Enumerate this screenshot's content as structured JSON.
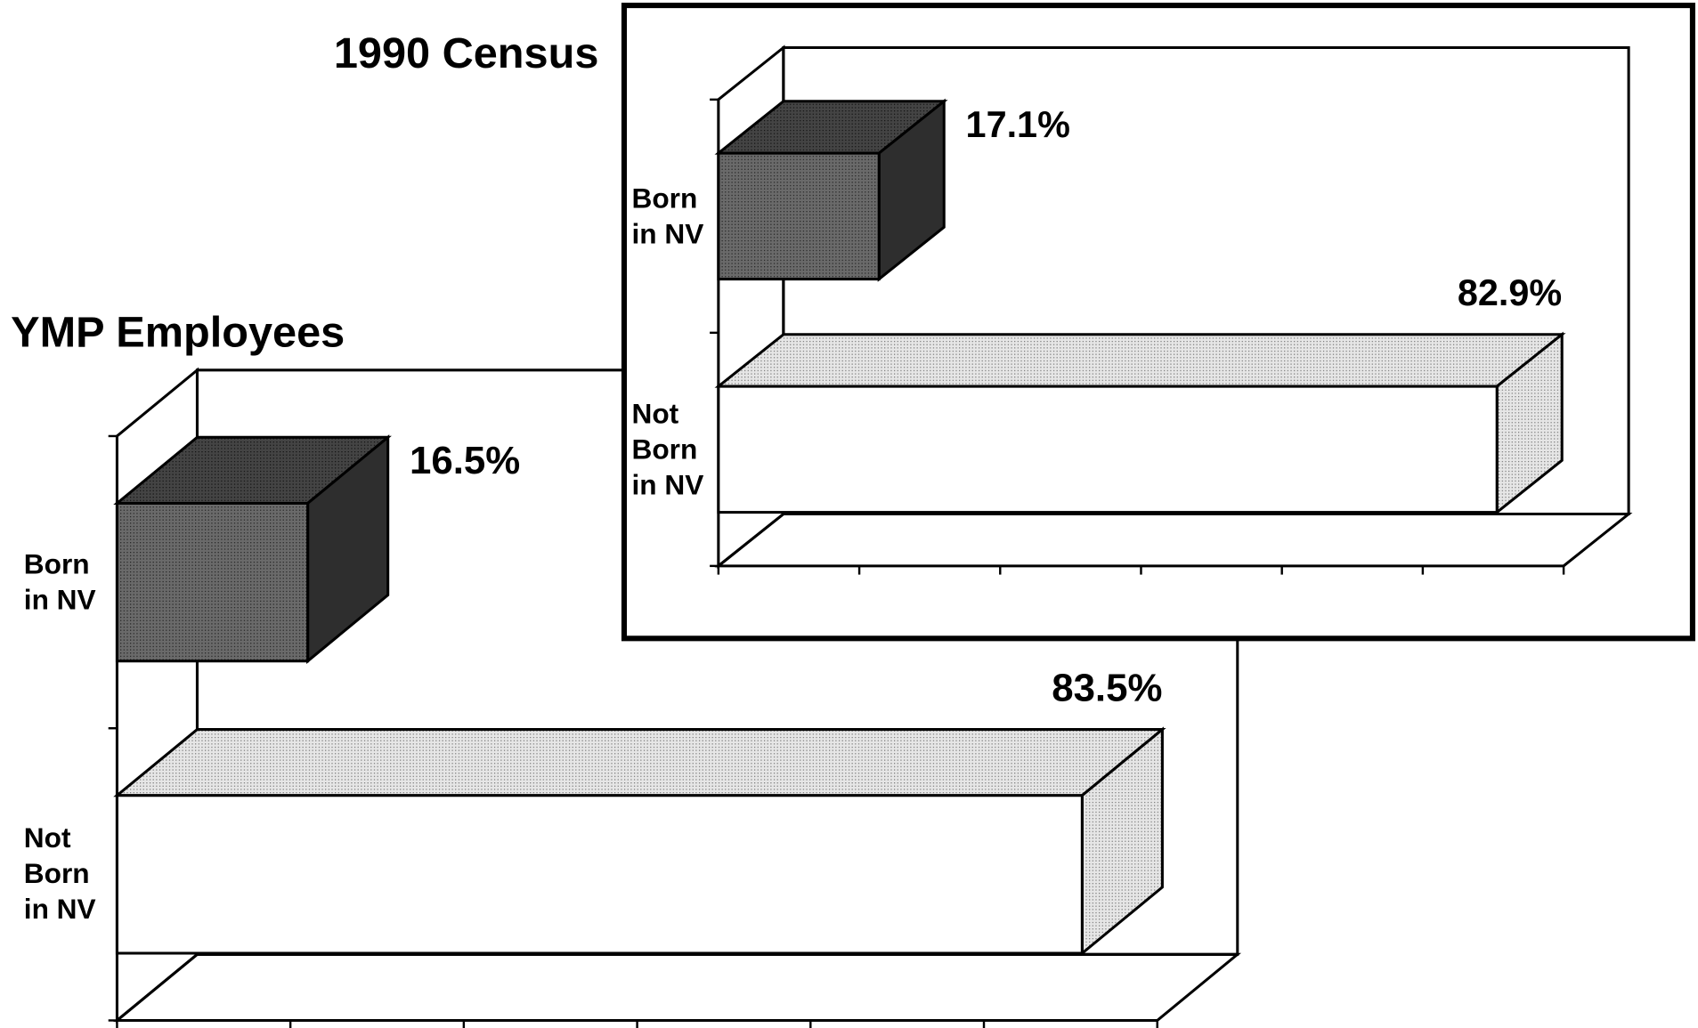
{
  "chart_data": [
    {
      "type": "bar3d",
      "title": "YMP Employees",
      "categories": [
        "Born in NV",
        "Not Born in NV"
      ],
      "values": [
        16.5,
        83.5
      ],
      "value_labels": [
        "16.5%",
        "83.5%"
      ],
      "colors": [
        "#5a5a5a",
        "#ffffff"
      ],
      "xlim": [
        0,
        90
      ],
      "xticks": [
        0,
        15,
        30,
        45,
        60,
        75,
        90
      ]
    },
    {
      "type": "bar3d",
      "title": "1990 Census",
      "categories": [
        "Born in NV",
        "Not Born in NV"
      ],
      "values": [
        17.1,
        82.9
      ],
      "value_labels": [
        "17.1%",
        "82.9%"
      ],
      "colors": [
        "#5a5a5a",
        "#ffffff"
      ],
      "xlim": [
        0,
        90
      ],
      "xticks": [
        0,
        15,
        30,
        45,
        60,
        75,
        90
      ]
    }
  ]
}
